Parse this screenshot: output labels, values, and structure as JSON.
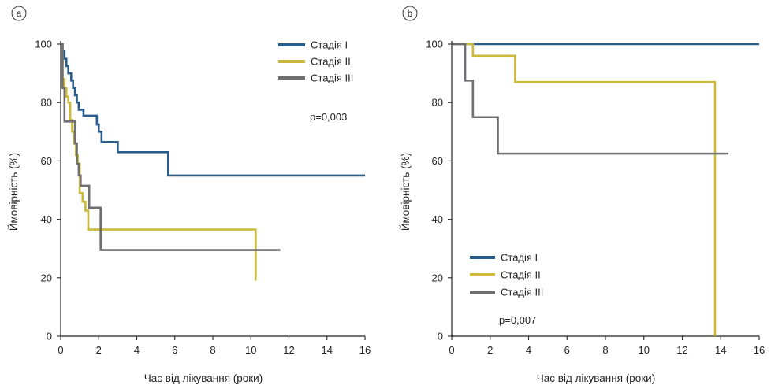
{
  "chart_data": [
    {
      "type": "line",
      "step": true,
      "panel_label": "a",
      "xlabel": "Час від лікування (роки)",
      "ylabel": "Ймовірність (%)",
      "xlim": [
        0,
        16
      ],
      "ylim": [
        0,
        100
      ],
      "xticks": [
        0,
        2,
        4,
        6,
        8,
        10,
        12,
        14,
        16
      ],
      "yticks": [
        0,
        20,
        40,
        60,
        80,
        100
      ],
      "annotation": "p=0,003",
      "legend_position": "top-right",
      "series": [
        {
          "name": "Стадія I",
          "color": "#2a5d8c",
          "x": [
            0,
            0.1,
            0.2,
            0.3,
            0.4,
            0.55,
            0.65,
            0.75,
            0.85,
            0.95,
            1.05,
            1.2,
            1.9,
            2.0,
            2.15,
            3.0,
            5.65,
            16
          ],
          "y": [
            100,
            97.5,
            95,
            92.5,
            90,
            87.5,
            85,
            82.5,
            80,
            77.5,
            77.5,
            75.5,
            72.5,
            70,
            66.5,
            63,
            55,
            55
          ]
        },
        {
          "name": "Стадія II",
          "color": "#cbb93a",
          "x": [
            0,
            0.1,
            0.2,
            0.3,
            0.4,
            0.5,
            0.6,
            0.7,
            0.8,
            0.9,
            1.0,
            1.15,
            1.3,
            1.45,
            10.25,
            10.25
          ],
          "y": [
            100,
            88,
            85,
            82,
            80,
            74,
            70,
            66,
            62,
            59,
            49,
            46,
            43,
            36.5,
            36.5,
            19
          ]
        },
        {
          "name": "Стадія III",
          "color": "#6e6e73",
          "x": [
            0,
            0.1,
            0.2,
            0.75,
            0.85,
            0.95,
            1.05,
            1.5,
            2.1,
            11.55
          ],
          "y": [
            100,
            85,
            73.5,
            66,
            59,
            55,
            51.5,
            44,
            29.5,
            29.5
          ]
        }
      ]
    },
    {
      "type": "line",
      "step": true,
      "panel_label": "b",
      "xlabel": "Час від лікування (роки)",
      "ylabel": "Ймовірність (%)",
      "xlim": [
        0,
        16
      ],
      "ylim": [
        0,
        100
      ],
      "xticks": [
        0,
        2,
        4,
        6,
        8,
        10,
        12,
        14,
        16
      ],
      "yticks": [
        0,
        20,
        40,
        60,
        80,
        100
      ],
      "annotation": "p=0,007",
      "legend_position": "bottom-left",
      "series": [
        {
          "name": "Стадія I",
          "color": "#2a5d8c",
          "x": [
            0,
            16
          ],
          "y": [
            100,
            100
          ]
        },
        {
          "name": "Стадія II",
          "color": "#cbb93a",
          "x": [
            0,
            1.1,
            3.3,
            13.7,
            13.7
          ],
          "y": [
            100,
            96,
            87,
            87,
            0
          ]
        },
        {
          "name": "Стадія III",
          "color": "#6e6e73",
          "x": [
            0,
            0.7,
            1.1,
            2.4,
            14.4
          ],
          "y": [
            100,
            87.5,
            75,
            62.5,
            62.5
          ]
        }
      ]
    }
  ]
}
